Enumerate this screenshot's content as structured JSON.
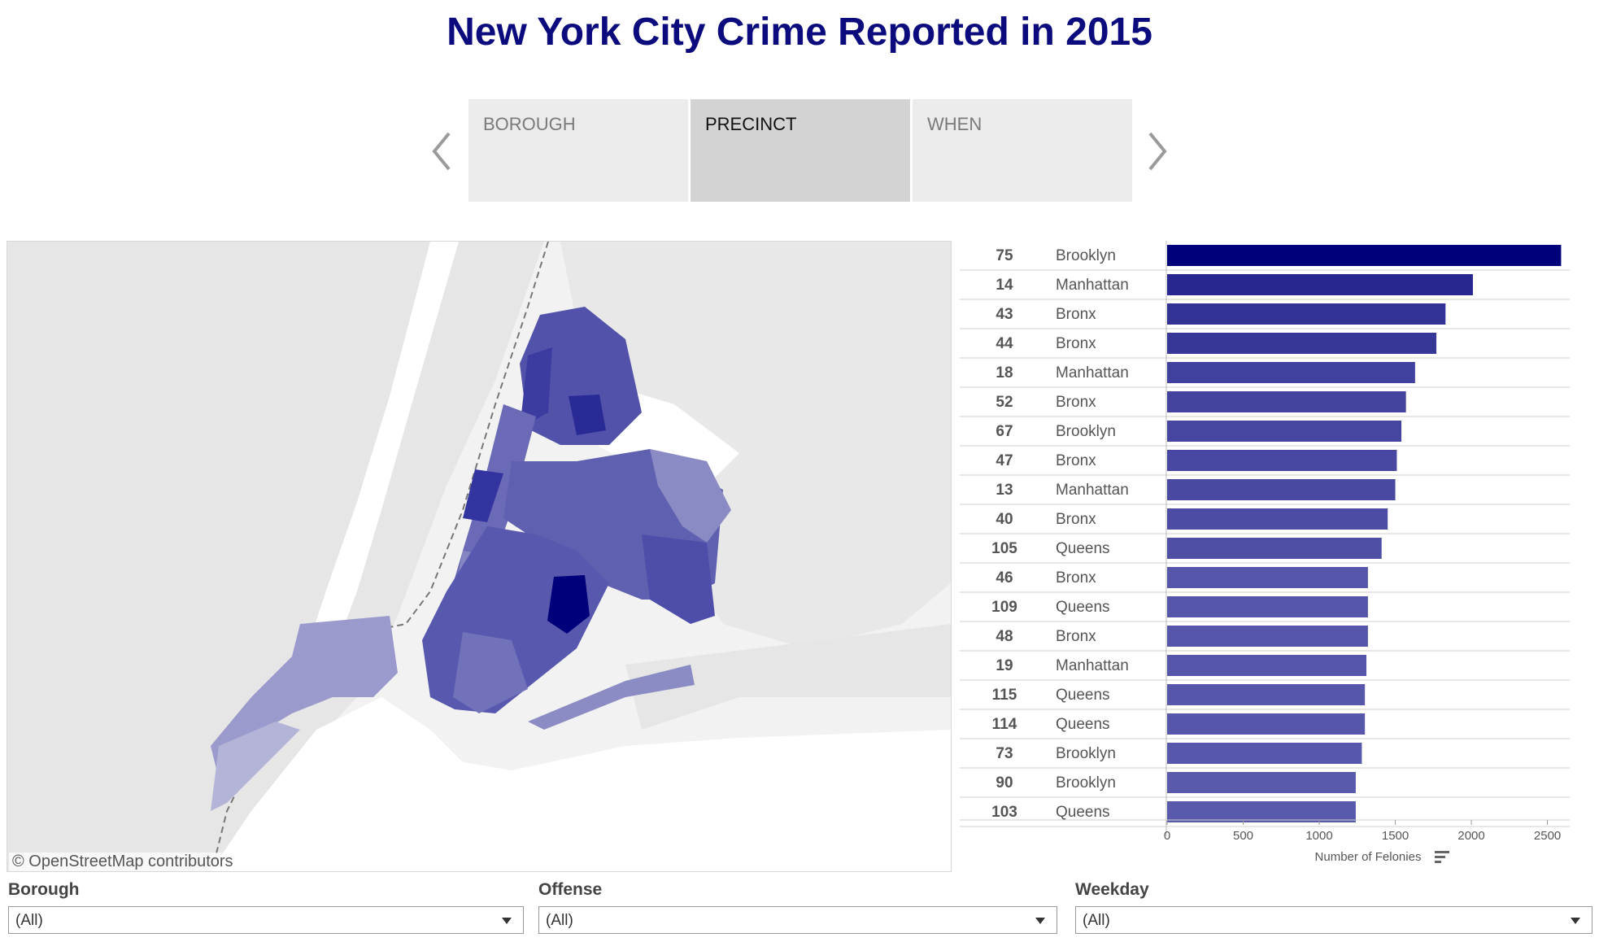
{
  "title": "New York City Crime Reported in 2015",
  "story_tabs": [
    {
      "label": "BOROUGH",
      "active": false
    },
    {
      "label": "PRECINCT",
      "active": true
    },
    {
      "label": "WHEN",
      "active": false
    }
  ],
  "map": {
    "attribution": "© OpenStreetMap contributors",
    "colors": {
      "background": "#f2f2f2",
      "land": "#e4e4e4",
      "water": "#ffffff",
      "highlight": "#00007a"
    }
  },
  "chart_data": {
    "type": "bar",
    "orientation": "horizontal",
    "row_headers": [
      "precinct",
      "borough"
    ],
    "categories": [
      "75",
      "14",
      "43",
      "44",
      "18",
      "52",
      "67",
      "47",
      "13",
      "40",
      "105",
      "46",
      "109",
      "48",
      "19",
      "115",
      "114",
      "73",
      "90",
      "103"
    ],
    "boroughs": [
      "Brooklyn",
      "Manhattan",
      "Bronx",
      "Bronx",
      "Manhattan",
      "Bronx",
      "Brooklyn",
      "Bronx",
      "Manhattan",
      "Bronx",
      "Queens",
      "Bronx",
      "Queens",
      "Bronx",
      "Manhattan",
      "Queens",
      "Queens",
      "Brooklyn",
      "Brooklyn",
      "Queens"
    ],
    "values": [
      2590,
      2010,
      1830,
      1770,
      1630,
      1570,
      1540,
      1510,
      1500,
      1450,
      1410,
      1320,
      1320,
      1320,
      1310,
      1300,
      1300,
      1280,
      1240,
      1240
    ],
    "xlabel": "Number of Felonies",
    "xlim": [
      0,
      2700
    ],
    "xticks": [
      0,
      500,
      1000,
      1500,
      2000,
      2500
    ],
    "color_range": [
      "#5a5aac",
      "#00007a"
    ],
    "sort_icon": "sort-descending-icon"
  },
  "filters": [
    {
      "label": "Borough",
      "value": "(All)"
    },
    {
      "label": "Offense",
      "value": "(All)"
    },
    {
      "label": "Weekday",
      "value": "(All)"
    }
  ],
  "icons": {
    "prev": "chevron-left-icon",
    "next": "chevron-right-icon",
    "dropdown": "caret-down-icon"
  }
}
